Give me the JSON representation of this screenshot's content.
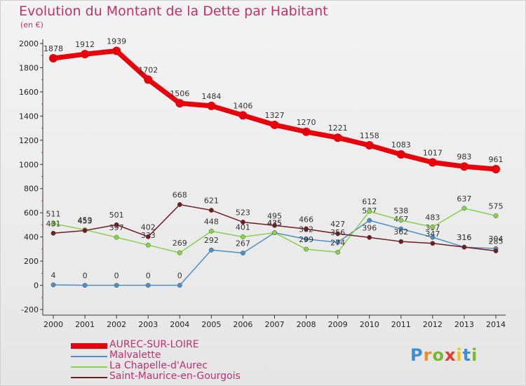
{
  "title": "Evolution du Montant de la Dette par Habitant",
  "subtitle": "(en €)",
  "logo": {
    "letters": [
      "P",
      "r",
      "o",
      "x",
      "i",
      "t",
      "i"
    ],
    "colors": [
      "#3b8fd4",
      "#f08a24",
      "#7cb82f",
      "#e63b2e",
      "#f0c419",
      "#3b8fd4",
      "#7cb82f"
    ]
  },
  "chart_data": {
    "type": "line",
    "title": "Evolution du Montant de la Dette par Habitant",
    "subtitle": "(en €)",
    "x": [
      "2000",
      "2001",
      "2002",
      "2003",
      "2004",
      "2005",
      "2006",
      "2007",
      "2008",
      "2009",
      "2010",
      "2011",
      "2012",
      "2013",
      "2014"
    ],
    "ylim": [
      -200,
      2000
    ],
    "yticks": [
      -200,
      0,
      200,
      400,
      600,
      800,
      1000,
      1200,
      1400,
      1600,
      1800,
      2000
    ],
    "grid": false,
    "legend_position": "bottom-left",
    "series": [
      {
        "name": "AUREC-SUR-LOIRE",
        "color": "#e8000b",
        "values": [
          1878,
          1912,
          1939,
          1702,
          1506,
          1484,
          1406,
          1327,
          1270,
          1221,
          1158,
          1083,
          1017,
          983,
          961
        ]
      },
      {
        "name": "Malvalette",
        "color": "#4a90c8",
        "values": [
          4,
          0,
          0,
          0,
          0,
          292,
          267,
          435,
          382,
          356,
          537,
          467,
          397,
          316,
          304
        ]
      },
      {
        "name": "La Chapelle-d'Aurec",
        "color": "#86d24a",
        "values": [
          511,
          459,
          397,
          333,
          269,
          448,
          401,
          435,
          299,
          274,
          612,
          538,
          483,
          637,
          575
        ]
      },
      {
        "name": "Saint-Maurice-en-Gourgois",
        "color": "#6e1d22",
        "values": [
          431,
          453,
          501,
          402,
          668,
          621,
          523,
          495,
          466,
          427,
          396,
          362,
          347,
          316,
          285
        ]
      }
    ]
  }
}
